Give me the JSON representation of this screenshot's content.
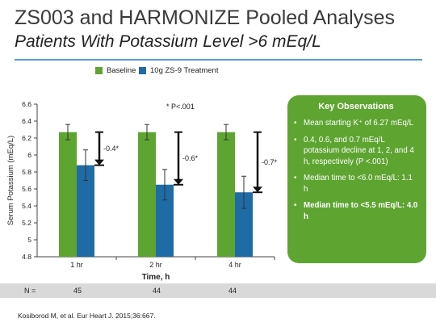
{
  "title": "ZS003 and HARMONIZE Pooled Analyses",
  "subtitle": "Patients With Potassium Level >6 mEq/L",
  "colors": {
    "baseline": "#5ea431",
    "treatment": "#1f6ba5",
    "rule": "#5b9bd5",
    "box": "#5ea431"
  },
  "chart_data": {
    "type": "bar",
    "categories": [
      "1 hr",
      "2 hr",
      "4 hr"
    ],
    "series": [
      {
        "name": "Baseline",
        "values": [
          6.27,
          6.27,
          6.27
        ],
        "error": [
          0.09,
          0.09,
          0.09
        ]
      },
      {
        "name": "10g ZS-9 Treatment",
        "values": [
          5.88,
          5.65,
          5.56
        ],
        "error": [
          0.18,
          0.18,
          0.19
        ]
      }
    ],
    "change_labels": [
      "-0.4*",
      "-0.6*",
      "-0.7*"
    ],
    "xlabel": "Time, h",
    "ylabel": "Serum Potassium (mEq/L)",
    "ylim": [
      4.8,
      6.6
    ],
    "yticks": [
      "4.8",
      "5",
      "5.2",
      "5.4",
      "5.6",
      "5.8",
      "6",
      "6.2",
      "6.4",
      "6.6"
    ],
    "legend_position": "top",
    "grid": false
  },
  "pvalue_note": "* P<.001",
  "key_observations": {
    "title": "Key Observations",
    "bullet": "•",
    "items": [
      {
        "text": "Mean starting K⁺ of 6.27 mEq/L",
        "bold": false
      },
      {
        "text": "0.4, 0.6, and 0.7 mEq/L potassium decline at 1, 2, and 4 h, respectively (P <.001)",
        "bold": false
      },
      {
        "text": "Median time to <6.0 mEq/L: 1.1 h",
        "bold": false
      },
      {
        "text": "Median time to <5.5 mEq/L: 4.0 h",
        "bold": true
      }
    ]
  },
  "n_row": {
    "label": "N =",
    "values": [
      "45",
      "44",
      "44"
    ]
  },
  "citation": "Kosiborod M, et al. Eur Heart J. 2015;36:667."
}
